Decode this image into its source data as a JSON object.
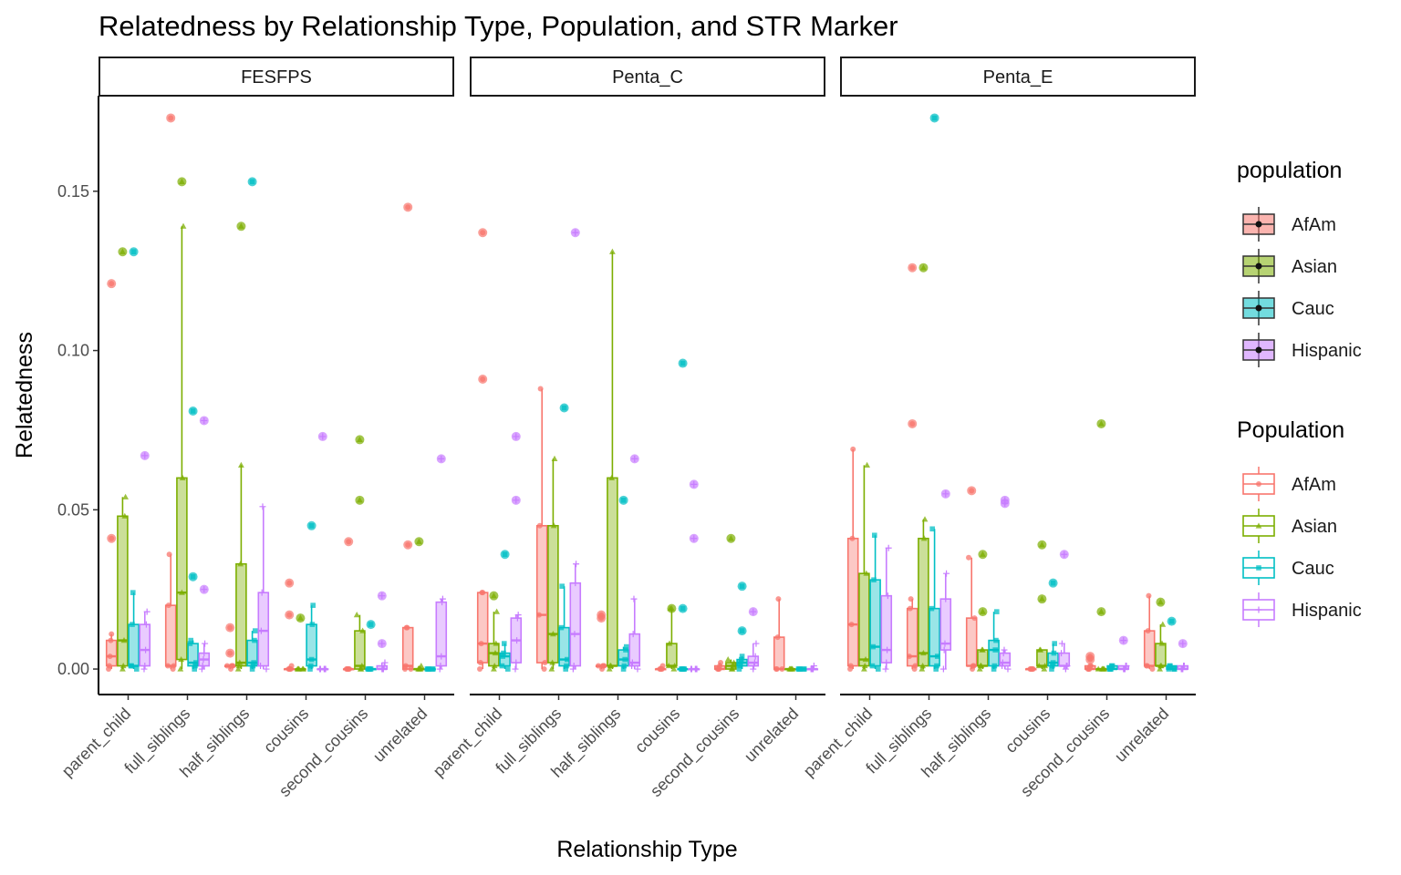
{
  "chart_data": {
    "type": "box",
    "title": "Relatedness by Relationship Type, Population, and STR Marker",
    "xlabel": "Relationship Type",
    "ylabel": "Relatedness",
    "ylim": [
      -0.008,
      0.18
    ],
    "yticks": [
      0,
      0.05,
      0.1,
      0.15
    ],
    "ytick_labels": [
      "0.00",
      "0.05",
      "0.10",
      "0.15"
    ],
    "facets": [
      "FESFPS",
      "Penta_C",
      "Penta_E"
    ],
    "categories": [
      "parent_child",
      "full_siblings",
      "half_siblings",
      "cousins",
      "second_cousins",
      "unrelated"
    ],
    "series_names": [
      "AfAm",
      "Asian",
      "Cauc",
      "Hispanic"
    ],
    "colors": [
      "#F8766D",
      "#7CAE00",
      "#00BFC4",
      "#C77CFF"
    ],
    "legends": [
      {
        "title": "population",
        "labels": [
          "AfAm",
          "Asian",
          "Cauc",
          "Hispanic"
        ],
        "style": "fill"
      },
      {
        "title": "Population",
        "labels": [
          "AfAm",
          "Asian",
          "Cauc",
          "Hispanic"
        ],
        "style": "line"
      }
    ],
    "panels": [
      {
        "facet": "FESFPS",
        "boxes": [
          [
            [
              0,
              0.001,
              0.004,
              0.009,
              0.011
            ],
            [
              0,
              0.001,
              0.009,
              0.048,
              0.054
            ],
            [
              0,
              0.001,
              0.001,
              0.014,
              0.024
            ],
            [
              0,
              0.001,
              0.006,
              0.014,
              0.018
            ]
          ],
          [
            [
              0,
              0.001,
              0.001,
              0.02,
              0.036
            ],
            [
              0,
              0.003,
              0.024,
              0.06,
              0.139
            ],
            [
              0,
              0.001,
              0.002,
              0.008,
              0.009
            ],
            [
              0,
              0.001,
              0.003,
              0.005,
              0.008
            ]
          ],
          [
            [
              0,
              0.001,
              0.001,
              0.001,
              0.001
            ],
            [
              0,
              0.001,
              0.002,
              0.033,
              0.064
            ],
            [
              0,
              0.001,
              0.002,
              0.009,
              0.012
            ],
            [
              0,
              0.001,
              0.012,
              0.024,
              0.051
            ]
          ],
          [
            [
              0,
              0,
              0,
              0,
              0.001
            ],
            [
              0,
              0,
              0,
              0,
              0
            ],
            [
              0,
              0.001,
              0.003,
              0.014,
              0.02
            ],
            [
              0,
              0,
              0,
              0,
              0
            ]
          ],
          [
            [
              0,
              0,
              0,
              0,
              0
            ],
            [
              0,
              0,
              0.001,
              0.012,
              0.017
            ],
            [
              0,
              0,
              0,
              0,
              0
            ],
            [
              0,
              0,
              0,
              0.001,
              0.002
            ]
          ],
          [
            [
              0,
              0,
              0.001,
              0.013,
              0.013
            ],
            [
              0,
              0,
              0,
              0,
              0.001
            ],
            [
              0,
              0,
              0,
              0,
              0
            ],
            [
              0,
              0.001,
              0.004,
              0.021,
              0.022
            ]
          ]
        ],
        "outliers": [
          [
            [
              0.041,
              0.121
            ],
            [
              0.131
            ],
            [
              0.131
            ],
            [
              0.067
            ]
          ],
          [
            [
              0.173
            ],
            [
              0.153
            ],
            [
              0.029,
              0.081
            ],
            [
              0.025,
              0.078
            ]
          ],
          [
            [
              0.013,
              0.005
            ],
            [
              0.139
            ],
            [
              0.153
            ],
            []
          ],
          [
            [
              0.017,
              0.027
            ],
            [
              0.016
            ],
            [
              0.045
            ],
            [
              0.073
            ]
          ],
          [
            [
              0.04
            ],
            [
              0.053,
              0.072
            ],
            [
              0.014
            ],
            [
              0.008,
              0.023
            ]
          ],
          [
            [
              0.039,
              0.145
            ],
            [
              0.04
            ],
            [],
            [
              0.066
            ]
          ]
        ]
      },
      {
        "facet": "Penta_C",
        "boxes": [
          [
            [
              0,
              0.002,
              0.008,
              0.024,
              0.024
            ],
            [
              0,
              0.001,
              0.005,
              0.008,
              0.018
            ],
            [
              0,
              0.001,
              0.004,
              0.005,
              0.008
            ],
            [
              0,
              0.002,
              0.009,
              0.016,
              0.017
            ]
          ],
          [
            [
              0,
              0.002,
              0.017,
              0.045,
              0.088
            ],
            [
              0,
              0.002,
              0.011,
              0.045,
              0.066
            ],
            [
              0,
              0.001,
              0.003,
              0.013,
              0.026
            ],
            [
              0,
              0.001,
              0.011,
              0.027,
              0.033
            ]
          ],
          [
            [
              0,
              0.001,
              0.001,
              0.001,
              0.001
            ],
            [
              0,
              0.001,
              0.001,
              0.06,
              0.131
            ],
            [
              0,
              0.001,
              0.003,
              0.006,
              0.007
            ],
            [
              0,
              0.001,
              0.002,
              0.011,
              0.022
            ]
          ],
          [
            [
              0,
              0,
              0,
              0,
              0.001
            ],
            [
              0,
              0.001,
              0.001,
              0.008,
              0.019
            ],
            [
              0,
              0,
              0,
              0,
              0
            ],
            [
              0,
              0,
              0,
              0,
              0
            ]
          ],
          [
            [
              0,
              0,
              0,
              0.001,
              0.002
            ],
            [
              0,
              0,
              0.001,
              0.002,
              0.003
            ],
            [
              0,
              0.001,
              0.002,
              0.003,
              0.004
            ],
            [
              0,
              0.001,
              0.002,
              0.004,
              0.008
            ]
          ],
          [
            [
              0,
              0,
              0,
              0.01,
              0.022
            ],
            [
              0,
              0,
              0,
              0,
              0
            ],
            [
              0,
              0,
              0,
              0,
              0
            ],
            [
              0,
              0,
              0,
              0,
              0.001
            ]
          ]
        ],
        "outliers": [
          [
            [
              0.091,
              0.137
            ],
            [
              0.023
            ],
            [
              0.036
            ],
            [
              0.053,
              0.073
            ]
          ],
          [
            [],
            [],
            [
              0.082
            ],
            [
              0.137
            ]
          ],
          [
            [
              0.016,
              0.017
            ],
            [],
            [
              0.053
            ],
            [
              0.066
            ]
          ],
          [
            [],
            [
              0.019
            ],
            [
              0.019,
              0.096
            ],
            [
              0.041,
              0.058
            ]
          ],
          [
            [],
            [
              0.041
            ],
            [
              0.012,
              0.026
            ],
            [
              0.018
            ]
          ],
          [
            [],
            [],
            [],
            []
          ]
        ]
      },
      {
        "facet": "Penta_E",
        "boxes": [
          [
            [
              0,
              0.001,
              0.014,
              0.041,
              0.069
            ],
            [
              0,
              0.001,
              0.003,
              0.03,
              0.064
            ],
            [
              0,
              0.001,
              0.007,
              0.028,
              0.042
            ],
            [
              0,
              0.002,
              0.006,
              0.023,
              0.038
            ]
          ],
          [
            [
              0,
              0.001,
              0.004,
              0.019,
              0.022
            ],
            [
              0,
              0.001,
              0.005,
              0.041,
              0.047
            ],
            [
              0,
              0.001,
              0.004,
              0.019,
              0.044
            ],
            [
              0,
              0.006,
              0.008,
              0.022,
              0.03
            ]
          ],
          [
            [
              0,
              0.001,
              0.001,
              0.016,
              0.035
            ],
            [
              0,
              0.001,
              0.001,
              0.006,
              0.006
            ],
            [
              0,
              0.001,
              0.006,
              0.009,
              0.018
            ],
            [
              0,
              0.001,
              0.002,
              0.005,
              0.006
            ]
          ],
          [
            [
              0,
              0,
              0,
              0,
              0
            ],
            [
              0,
              0.001,
              0.001,
              0.006,
              0.006
            ],
            [
              0,
              0.001,
              0.002,
              0.005,
              0.008
            ],
            [
              0,
              0.001,
              0.001,
              0.005,
              0.008
            ]
          ],
          [
            [
              0,
              0,
              0,
              0.001,
              0.001
            ],
            [
              0,
              0,
              0,
              0,
              0
            ],
            [
              0,
              0,
              0,
              0.001,
              0.001
            ],
            [
              0,
              0,
              0,
              0.001,
              0.001
            ]
          ],
          [
            [
              0,
              0.001,
              0.001,
              0.012,
              0.023
            ],
            [
              0,
              0.001,
              0.001,
              0.008,
              0.014
            ],
            [
              0,
              0,
              0,
              0.001,
              0.001
            ],
            [
              0,
              0,
              0,
              0.001,
              0.001
            ]
          ]
        ],
        "outliers": [
          [
            [],
            [],
            [],
            []
          ],
          [
            [
              0.077,
              0.126
            ],
            [
              0.126
            ],
            [
              0.173
            ],
            [
              0.055
            ]
          ],
          [
            [
              0.056
            ],
            [
              0.018,
              0.036
            ],
            [],
            [
              0.052,
              0.053
            ]
          ],
          [
            [],
            [
              0.022,
              0.039
            ],
            [
              0.027
            ],
            [
              0.036
            ]
          ],
          [
            [
              0.003,
              0.004
            ],
            [
              0.018,
              0.077
            ],
            [],
            [
              0.009
            ]
          ],
          [
            [],
            [
              0.021
            ],
            [
              0.015
            ],
            [
              0.008
            ]
          ]
        ]
      }
    ]
  }
}
